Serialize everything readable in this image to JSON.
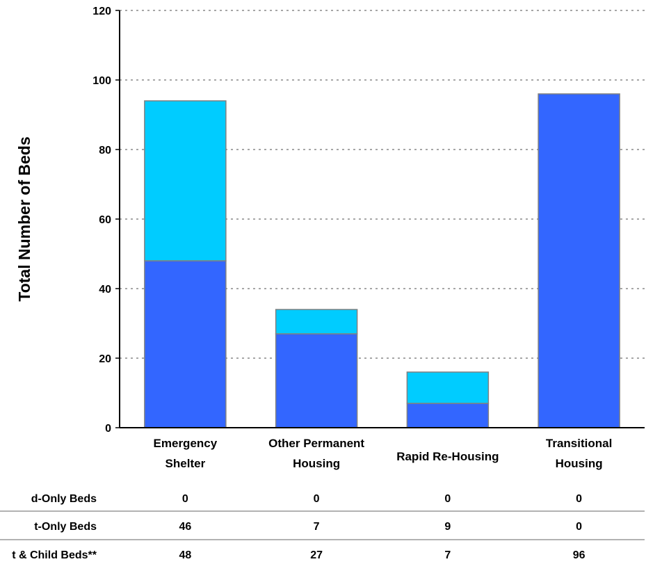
{
  "chart_data": {
    "type": "bar",
    "stacked": true,
    "ylabel": "Total Number of Beds",
    "xlabel": "",
    "ylim": [
      0,
      120
    ],
    "yticks": [
      0,
      20,
      40,
      60,
      80,
      100,
      120
    ],
    "grid": true,
    "categories": [
      [
        "Emergency",
        "Shelter"
      ],
      [
        "Other Permanent",
        "Housing"
      ],
      [
        "Rapid Re-Housing"
      ],
      [
        "Transitional",
        "Housing"
      ]
    ],
    "series": [
      {
        "name": "Adult & Child Beds**",
        "color": "#3366ff",
        "values": [
          48,
          27,
          7,
          96
        ]
      },
      {
        "name": "Adult-Only Beds",
        "color": "#00ccff",
        "values": [
          46,
          7,
          9,
          0
        ]
      },
      {
        "name": "Child-Only Beds",
        "color": "#ff6600",
        "values": [
          0,
          0,
          0,
          0
        ]
      }
    ],
    "table": {
      "row_labels_visible": [
        "d-Only Beds",
        "t-Only Beds",
        "t & Child Beds**"
      ],
      "rows": [
        [
          "0",
          "0",
          "0",
          "0"
        ],
        [
          "46",
          "7",
          "9",
          "0"
        ],
        [
          "48",
          "27",
          "7",
          "96"
        ]
      ]
    }
  }
}
